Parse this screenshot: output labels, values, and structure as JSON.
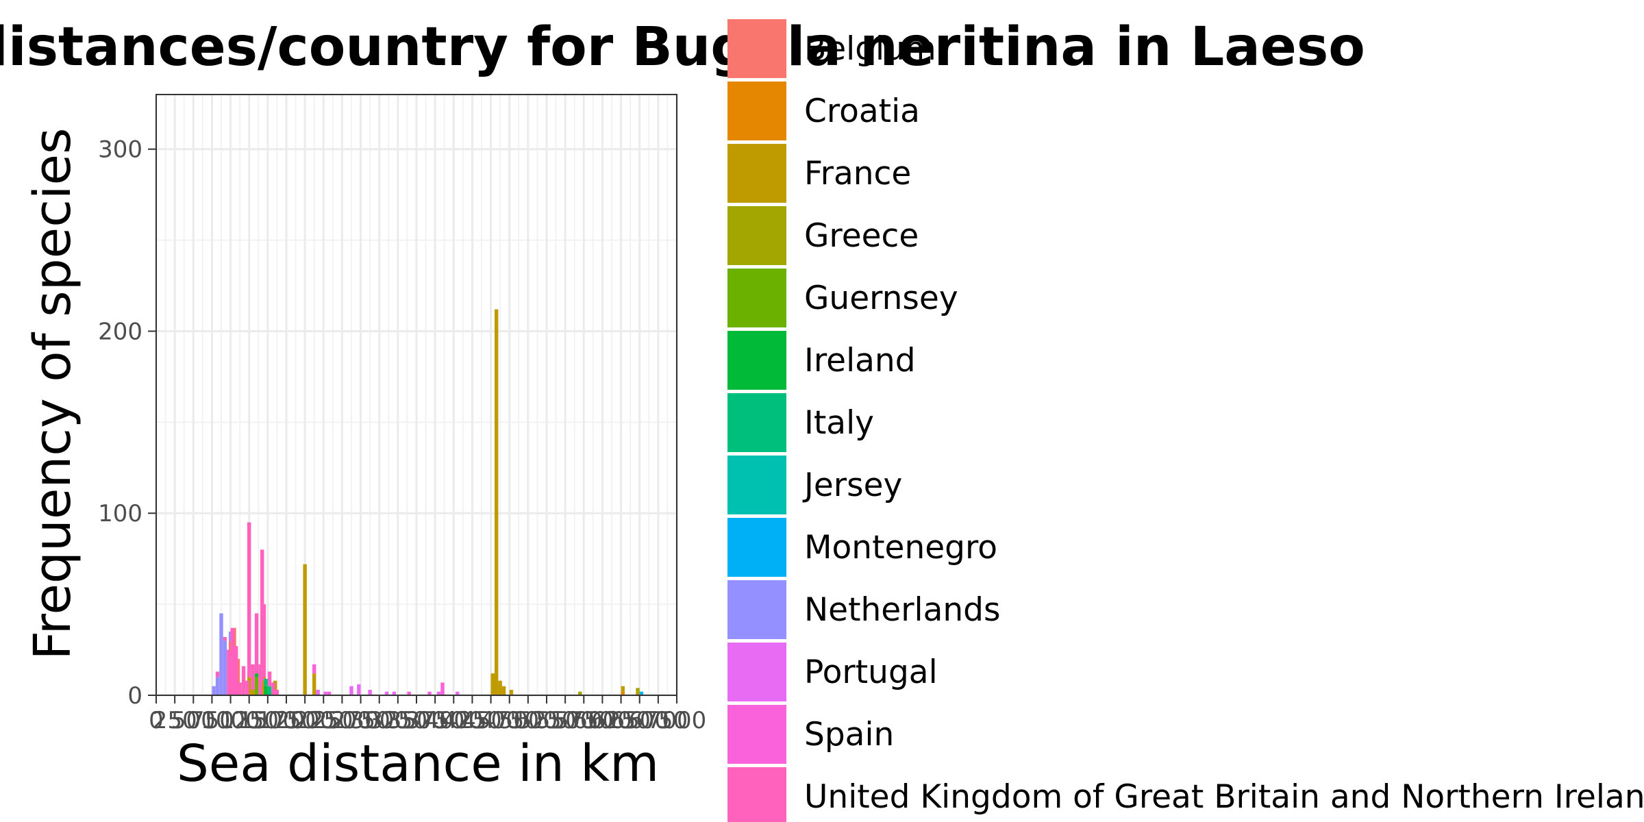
{
  "chart_data": {
    "type": "bar",
    "stacked": true,
    "title": "Sea distances/country for Bugula neritina in Laeso",
    "xlabel": "Sea distance in km",
    "ylabel": "Frequency of species",
    "xlim": [
      0,
      7000
    ],
    "ylim": [
      0,
      330
    ],
    "x_ticks": [
      0,
      250,
      500,
      750,
      1000,
      1250,
      1500,
      1750,
      2000,
      2250,
      2500,
      2750,
      3000,
      3250,
      3500,
      3750,
      4000,
      4250,
      4500,
      4750,
      5000,
      5250,
      5500,
      5750,
      6000,
      6250,
      6500,
      6750,
      7000
    ],
    "y_ticks": [
      0,
      100,
      200,
      300
    ],
    "grid": true,
    "legend_position": "right",
    "bin_width": 50,
    "series": [
      {
        "name": "Belgium",
        "color": "#F8766D",
        "values": [
          [
            1000,
            30
          ],
          [
            1050,
            37
          ],
          [
            1100,
            20
          ]
        ]
      },
      {
        "name": "Croatia",
        "color": "#E58700",
        "values": [
          [
            6275,
            2
          ]
        ]
      },
      {
        "name": "France",
        "color": "#C09B00",
        "values": [
          [
            1250,
            10
          ],
          [
            1300,
            3
          ],
          [
            1425,
            8
          ],
          [
            1450,
            10
          ],
          [
            1550,
            2
          ],
          [
            1600,
            8
          ],
          [
            2000,
            72
          ],
          [
            2125,
            12
          ],
          [
            4525,
            12
          ],
          [
            4575,
            212
          ],
          [
            4625,
            8
          ],
          [
            4675,
            5
          ],
          [
            4775,
            3
          ],
          [
            6275,
            3
          ],
          [
            6475,
            2
          ]
        ]
      },
      {
        "name": "Greece",
        "color": "#A3A500",
        "values": [
          [
            5700,
            2
          ],
          [
            6475,
            2
          ]
        ]
      },
      {
        "name": "Guernsey",
        "color": "#6BB100",
        "values": [
          [
            1350,
            10
          ]
        ]
      },
      {
        "name": "Ireland",
        "color": "#00BA38",
        "values": [
          [
            1350,
            2
          ],
          [
            1475,
            5
          ]
        ]
      },
      {
        "name": "Italy",
        "color": "#00BF7D",
        "values": [
          [
            1475,
            4
          ],
          [
            1525,
            5
          ]
        ]
      },
      {
        "name": "Jersey",
        "color": "#00C0AF",
        "values": []
      },
      {
        "name": "Montenegro",
        "color": "#00B0F6",
        "values": [
          [
            6525,
            2
          ]
        ]
      },
      {
        "name": "Netherlands",
        "color": "#9590FF",
        "values": [
          [
            775,
            5
          ],
          [
            825,
            10
          ],
          [
            875,
            45
          ],
          [
            925,
            30
          ],
          [
            1000,
            5
          ]
        ]
      },
      {
        "name": "Portugal",
        "color": "#E76BF3",
        "values": [
          [
            2175,
            3
          ],
          [
            2275,
            2
          ],
          [
            2625,
            5
          ],
          [
            2725,
            6
          ],
          [
            2875,
            3
          ],
          [
            3100,
            2
          ],
          [
            3200,
            2
          ],
          [
            3800,
            2
          ],
          [
            4050,
            2
          ]
        ]
      },
      {
        "name": "Spain",
        "color": "#FA62DB",
        "values": [
          [
            2125,
            5
          ],
          [
            2325,
            2
          ],
          [
            3400,
            2
          ],
          [
            3675,
            2
          ],
          [
            3850,
            7
          ]
        ]
      },
      {
        "name": "United Kingdom of Great Britain and Northern Ireland",
        "color": "#FF62BC",
        "values": [
          [
            825,
            3
          ],
          [
            925,
            2
          ],
          [
            975,
            25
          ],
          [
            1025,
            37
          ],
          [
            1075,
            27
          ],
          [
            1125,
            7
          ],
          [
            1175,
            16
          ],
          [
            1225,
            8
          ],
          [
            1250,
            85
          ],
          [
            1300,
            14
          ],
          [
            1350,
            33
          ],
          [
            1400,
            17
          ],
          [
            1425,
            72
          ],
          [
            1450,
            40
          ],
          [
            1525,
            8
          ],
          [
            1575,
            7
          ],
          [
            1625,
            3
          ]
        ]
      }
    ]
  }
}
